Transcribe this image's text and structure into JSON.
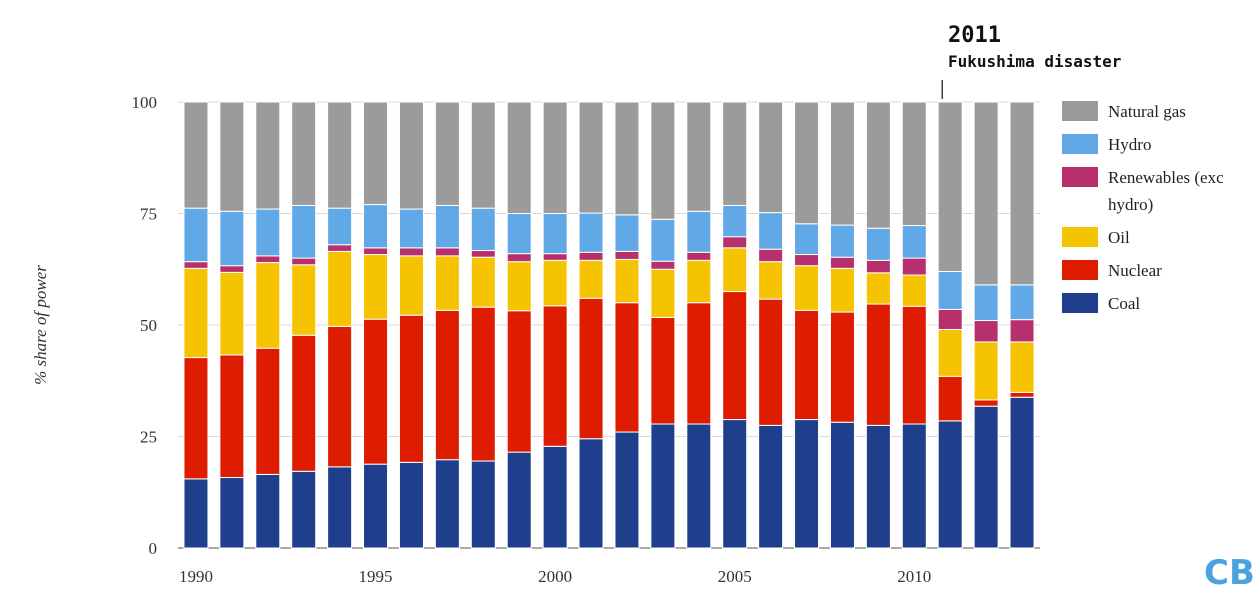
{
  "chart_data": {
    "type": "bar",
    "stacked": true,
    "ylabel": "% share of power",
    "xlabel": "",
    "ylim": [
      0,
      100
    ],
    "yticks": [
      0,
      25,
      50,
      75,
      100
    ],
    "xticks": [
      "1990",
      "1995",
      "2000",
      "2005",
      "2010"
    ],
    "grid": true,
    "legend_position": "right",
    "categories": [
      1990,
      1991,
      1992,
      1993,
      1994,
      1995,
      1996,
      1997,
      1998,
      1999,
      2000,
      2001,
      2002,
      2003,
      2004,
      2005,
      2006,
      2007,
      2008,
      2009,
      2010,
      2011,
      2012,
      2013
    ],
    "series": [
      {
        "name": "Coal",
        "color": "#1f3f8c",
        "values": [
          15.5,
          15.8,
          16.5,
          17.2,
          18.2,
          18.8,
          19.2,
          19.8,
          19.5,
          21.5,
          22.8,
          24.5,
          26.0,
          27.8,
          27.8,
          28.8,
          27.5,
          28.8,
          28.2,
          27.5,
          27.8,
          28.5,
          31.8,
          33.8
        ]
      },
      {
        "name": "Nuclear",
        "color": "#dd1c00",
        "values": [
          27.2,
          27.5,
          28.3,
          30.5,
          31.5,
          32.5,
          33.0,
          33.5,
          34.5,
          31.7,
          31.5,
          31.5,
          29.0,
          23.9,
          27.2,
          28.7,
          28.3,
          24.5,
          24.7,
          27.2,
          26.4,
          10.0,
          1.4,
          1.1
        ]
      },
      {
        "name": "Oil",
        "color": "#f6c300",
        "values": [
          20.0,
          18.5,
          19.2,
          15.8,
          16.8,
          14.5,
          13.3,
          12.2,
          11.2,
          11.0,
          10.2,
          8.5,
          9.7,
          10.8,
          9.5,
          9.8,
          8.4,
          10.0,
          9.8,
          7.0,
          7.0,
          10.5,
          13.0,
          11.3
        ]
      },
      {
        "name": "Renewables (exc hydro)",
        "color": "#b7306d",
        "values": [
          1.5,
          1.5,
          1.5,
          1.5,
          1.5,
          1.5,
          1.8,
          1.8,
          1.5,
          1.8,
          1.5,
          1.8,
          1.8,
          1.8,
          1.8,
          2.5,
          2.8,
          2.5,
          2.5,
          2.8,
          3.8,
          4.5,
          4.8,
          5.0
        ]
      },
      {
        "name": "Hydro",
        "color": "#61a9e6",
        "values": [
          12.0,
          12.2,
          10.5,
          11.8,
          8.2,
          9.7,
          8.7,
          9.5,
          9.5,
          9.0,
          9.0,
          8.8,
          8.2,
          9.4,
          9.2,
          7.0,
          8.2,
          6.9,
          7.2,
          7.2,
          7.3,
          8.5,
          8.0,
          7.8
        ]
      },
      {
        "name": "Natural gas",
        "color": "#9b9b9b",
        "values": [
          23.8,
          24.5,
          24.0,
          23.2,
          23.8,
          23.0,
          24.0,
          23.2,
          23.8,
          25.0,
          25.0,
          24.9,
          25.3,
          26.3,
          24.5,
          23.2,
          24.8,
          27.3,
          27.6,
          28.3,
          27.7,
          38.0,
          41.0,
          41.0
        ]
      }
    ],
    "annotation": {
      "year": 2011,
      "title": "2011",
      "text": "Fukushima disaster"
    }
  },
  "logo": {
    "text": "CB",
    "color": "#4aa3df"
  }
}
